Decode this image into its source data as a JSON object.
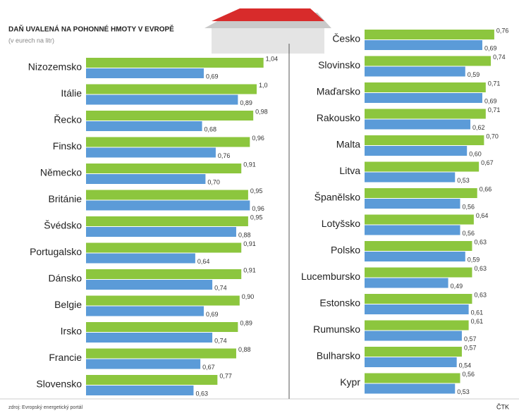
{
  "title": "DAŇ UVALENÁ NA POHONNÉ HMOTY V EVROPĚ",
  "subtitle": "(v eurech na litr)",
  "source": "zdroj: Evropský energetický portál",
  "credit": "ČTK",
  "chart_data": [
    {
      "type": "bar",
      "orientation": "horizontal",
      "categories": [
        "Nizozemsko",
        "Itálie",
        "Řecko",
        "Finsko",
        "Německo",
        "Británie",
        "Švédsko",
        "Portugalsko",
        "Dánsko",
        "Belgie",
        "Irsko",
        "Francie",
        "Slovensko"
      ],
      "series": [
        {
          "color": "#8cc63e",
          "values": [
            1.04,
            1.0,
            0.98,
            0.96,
            0.91,
            0.95,
            0.95,
            0.91,
            0.91,
            0.9,
            0.89,
            0.88,
            0.77
          ],
          "value_labels": [
            "1,04",
            "1,0",
            "0,98",
            "0,96",
            "0,91",
            "0,95",
            "0,95",
            "0,91",
            "0,91",
            "0,90",
            "0,89",
            "0,88",
            "0,77"
          ]
        },
        {
          "color": "#5b9bd8",
          "values": [
            0.69,
            0.89,
            0.68,
            0.76,
            0.7,
            0.96,
            0.88,
            0.64,
            0.74,
            0.69,
            0.74,
            0.67,
            0.63
          ],
          "value_labels": [
            "0,69",
            "0,89",
            "0,68",
            "0,76",
            "0,70",
            "0,96",
            "0,88",
            "0,64",
            "0,74",
            "0,69",
            "0,74",
            "0,67",
            "0,63"
          ]
        }
      ]
    },
    {
      "type": "bar",
      "orientation": "horizontal",
      "categories": [
        "Česko",
        "Slovinsko",
        "Maďarsko",
        "Rakousko",
        "Malta",
        "Litva",
        "Španělsko",
        "Lotyšsko",
        "Polsko",
        "Lucembursko",
        "Estonsko",
        "Rumunsko",
        "Bulharsko",
        "Kypr"
      ],
      "series": [
        {
          "color": "#8cc63e",
          "values": [
            0.76,
            0.74,
            0.71,
            0.71,
            0.7,
            0.67,
            0.66,
            0.64,
            0.63,
            0.63,
            0.63,
            0.61,
            0.57,
            0.56
          ],
          "value_labels": [
            "0,76",
            "0,74",
            "0,71",
            "0,71",
            "0,70",
            "0,67",
            "0,66",
            "0,64",
            "0,63",
            "0,63",
            "0,63",
            "0,61",
            "0,57",
            "0,56"
          ]
        },
        {
          "color": "#5b9bd8",
          "values": [
            0.69,
            0.59,
            0.69,
            0.62,
            0.6,
            0.53,
            0.56,
            0.56,
            0.59,
            0.49,
            0.61,
            0.57,
            0.54,
            0.53
          ],
          "value_labels": [
            "0,69",
            "0,59",
            "0,69",
            "0,62",
            "0,60",
            "0,53",
            "0,56",
            "0,56",
            "0,59",
            "0,49",
            "0,61",
            "0,57",
            "0,54",
            "0,53"
          ]
        }
      ]
    }
  ]
}
